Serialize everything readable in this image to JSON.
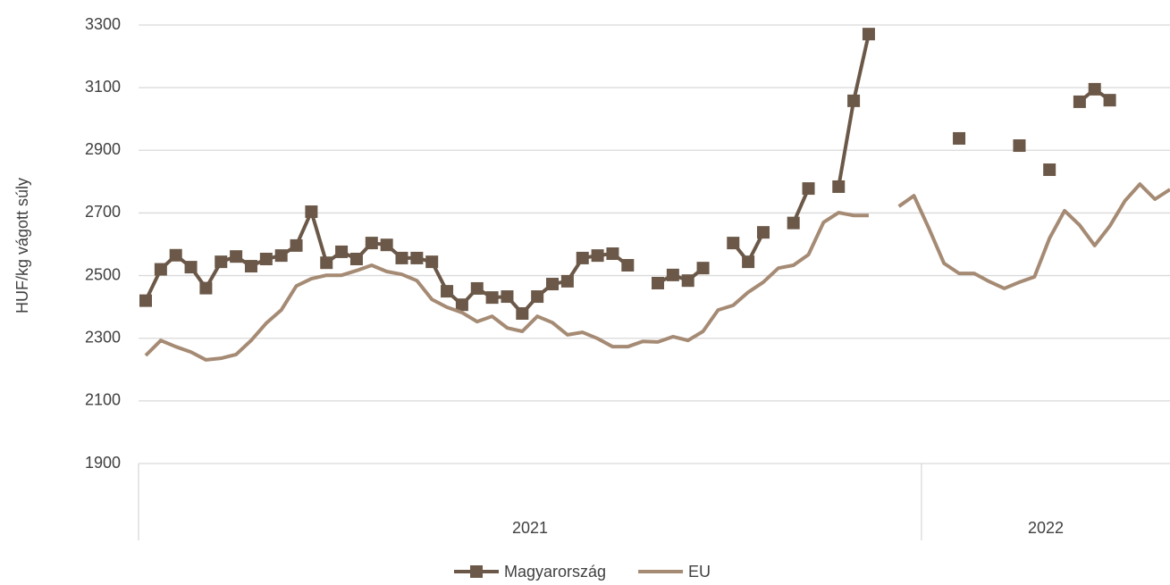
{
  "chart_data": {
    "type": "line",
    "y_label": "HUF/kg vágott súly",
    "categories": [
      null,
      null,
      null,
      null,
      null,
      null,
      null,
      null,
      null,
      null,
      null,
      null,
      null,
      null,
      null,
      null,
      null,
      null,
      null,
      null,
      null,
      null,
      null,
      null,
      null,
      null,
      null,
      null,
      null,
      null,
      null,
      null,
      null,
      null,
      null,
      null,
      null,
      null,
      null,
      null,
      null,
      null,
      null,
      null,
      null,
      null,
      null,
      null,
      null,
      null,
      null,
      null,
      null,
      null,
      null,
      null,
      null,
      null,
      null,
      null,
      null,
      null,
      null,
      null,
      null,
      null,
      null,
      null,
      null
    ],
    "x_groups": [
      {
        "label": "2021",
        "count": 52
      },
      {
        "label": "2022",
        "count": 17
      }
    ],
    "ylim": [
      1900,
      3300
    ],
    "yticks": [
      1900,
      2100,
      2300,
      2500,
      2700,
      2900,
      3100,
      3300
    ],
    "grid": true,
    "legend": "bottom",
    "series": [
      {
        "name": "Magyarország",
        "color": "#6b5848",
        "marker": "square",
        "values": [
          2420,
          2520,
          2565,
          2527,
          2460,
          2544,
          2561,
          2530,
          2553,
          2564,
          2596,
          2704,
          2541,
          2576,
          2553,
          2604,
          2598,
          2556,
          2556,
          2544,
          2450,
          2407,
          2459,
          2430,
          2433,
          2379,
          2433,
          2473,
          2482,
          2556,
          2564,
          2570,
          2533,
          null,
          2476,
          2502,
          2484,
          2524,
          null,
          2604,
          2544,
          2638,
          null,
          2668,
          2778,
          null,
          2784,
          3058,
          3271,
          null,
          null,
          null,
          null,
          null,
          2938,
          null,
          null,
          null,
          2915,
          null,
          2838,
          null,
          3055,
          3095,
          3060,
          null,
          null,
          null,
          null
        ]
      },
      {
        "name": "EU",
        "color": "#a58a74",
        "marker": "none",
        "values": [
          2245,
          2293,
          2273,
          2256,
          2231,
          2236,
          2248,
          2293,
          2348,
          2390,
          2467,
          2490,
          2501,
          2501,
          2516,
          2533,
          2513,
          2504,
          2484,
          2424,
          2399,
          2382,
          2353,
          2370,
          2333,
          2322,
          2370,
          2350,
          2311,
          2319,
          2299,
          2273,
          2273,
          2290,
          2288,
          2305,
          2293,
          2322,
          2390,
          2405,
          2447,
          2479,
          2524,
          2533,
          2567,
          2670,
          2701,
          2692,
          2692,
          null,
          2721,
          2755,
          2650,
          2539,
          2507,
          2507,
          2481,
          2459,
          2479,
          2496,
          2619,
          2707,
          2661,
          2596,
          2658,
          2738,
          2792,
          2744,
          2775
        ]
      }
    ]
  }
}
